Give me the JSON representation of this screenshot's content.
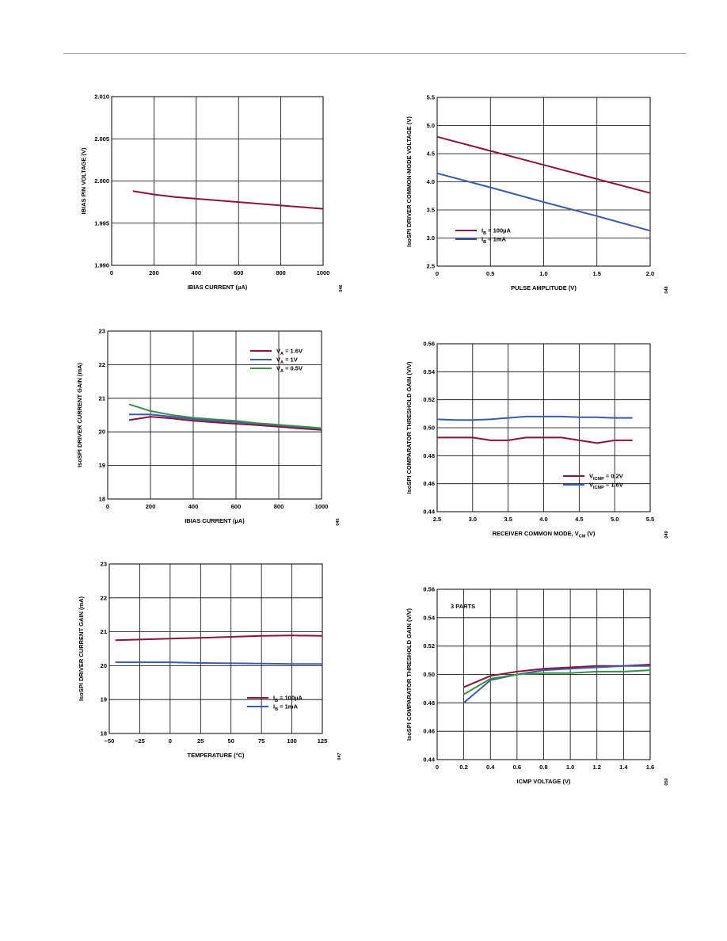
{
  "colors": {
    "maroon": "#8b1538",
    "blue": "#3a5ba9",
    "green": "#3a8f4a",
    "grid": "#000000"
  },
  "chart_data": [
    {
      "type": "line",
      "xlabel": "IBIAS CURRENT (µA)",
      "ylabel": "IBIAS PIN VOLTAGE (V)",
      "xlim": [
        0,
        1000
      ],
      "ylim": [
        1.99,
        2.01
      ],
      "xticks": [
        "0",
        "200",
        "400",
        "600",
        "800",
        "1000"
      ],
      "yticks": [
        "1.990",
        "1.995",
        "2.000",
        "2.005",
        "2.010"
      ],
      "side_code": "046",
      "series": [
        {
          "color": "maroon",
          "x": [
            100,
            200,
            300,
            400,
            500,
            600,
            700,
            800,
            900,
            1000
          ],
          "y": [
            1.9988,
            1.9984,
            1.9981,
            1.9979,
            1.9977,
            1.9975,
            1.9973,
            1.9971,
            1.9969,
            1.9967
          ]
        }
      ]
    },
    {
      "type": "line",
      "xlabel": "PULSE AMPLITUDE (V)",
      "ylabel": "IsoSPI DRIVER COMMON-MODE VOLTAGE (V)",
      "xlim": [
        0,
        2.0
      ],
      "ylim": [
        2.5,
        5.5
      ],
      "xticks": [
        "0",
        "0.5",
        "1.0",
        "1.5",
        "2.0"
      ],
      "yticks": [
        "2.5",
        "3.0",
        "3.5",
        "4.0",
        "4.5",
        "5.0",
        "5.5"
      ],
      "side_code": "048",
      "legend": [
        {
          "label": "I",
          "sub": "B",
          "suffix": " = 100µA",
          "color": "maroon"
        },
        {
          "label": "I",
          "sub": "B",
          "suffix": " = 1mA",
          "color": "blue"
        }
      ],
      "series": [
        {
          "color": "maroon",
          "x": [
            0,
            0.5,
            1.0,
            1.5,
            2.0
          ],
          "y": [
            4.8,
            4.55,
            4.3,
            4.05,
            3.8
          ]
        },
        {
          "color": "blue",
          "x": [
            0,
            0.5,
            1.0,
            1.5,
            2.0
          ],
          "y": [
            4.15,
            3.9,
            3.64,
            3.39,
            3.13
          ]
        }
      ]
    },
    {
      "type": "line",
      "xlabel": "IBIAS CURRENT (µA)",
      "ylabel": "IsoSPI DRIVER CURRENT GAIN (mA)",
      "xlim": [
        0,
        1000
      ],
      "ylim": [
        18,
        23
      ],
      "xticks": [
        "0",
        "200",
        "400",
        "600",
        "800",
        "1000"
      ],
      "yticks": [
        "18",
        "19",
        "20",
        "21",
        "22",
        "23"
      ],
      "side_code": "045",
      "legend": [
        {
          "label": "V",
          "sub": "A",
          "suffix": " = 1.6V",
          "color": "maroon"
        },
        {
          "label": "V",
          "sub": "A",
          "suffix": " = 1V",
          "color": "blue"
        },
        {
          "label": "V",
          "sub": "A",
          "suffix": " = 0.5V",
          "color": "green"
        }
      ],
      "series": [
        {
          "color": "maroon",
          "x": [
            100,
            200,
            300,
            400,
            500,
            600,
            700,
            800,
            900,
            1000
          ],
          "y": [
            20.35,
            20.45,
            20.4,
            20.33,
            20.28,
            20.24,
            20.2,
            20.15,
            20.1,
            20.06
          ]
        },
        {
          "color": "blue",
          "x": [
            100,
            200,
            300,
            400,
            500,
            600,
            700,
            800,
            900,
            1000
          ],
          "y": [
            20.52,
            20.52,
            20.45,
            20.38,
            20.33,
            20.29,
            20.24,
            20.19,
            20.14,
            20.09
          ]
        },
        {
          "color": "green",
          "x": [
            100,
            200,
            300,
            400,
            500,
            600,
            700,
            800,
            900,
            1000
          ],
          "y": [
            20.82,
            20.62,
            20.5,
            20.42,
            20.37,
            20.33,
            20.26,
            20.21,
            20.16,
            20.11
          ]
        }
      ]
    },
    {
      "type": "line",
      "xlabel": "RECEIVER COMMON MODE, V",
      "xlabel_sub": "CM",
      "xlabel_tail": " (V)",
      "ylabel": "IsoSPI COMPARATOR THRESHOLD GAIN (V/V)",
      "xlim": [
        2.5,
        5.5
      ],
      "ylim": [
        0.44,
        0.56
      ],
      "xticks": [
        "2.5",
        "3.0",
        "3.5",
        "4.0",
        "4.5",
        "5.0",
        "5.5"
      ],
      "yticks": [
        "0.44",
        "0.46",
        "0.48",
        "0.50",
        "0.52",
        "0.54",
        "0.56"
      ],
      "side_code": "049",
      "legend": [
        {
          "label": "V",
          "sub": "ICMP",
          "suffix": " = 0.2V",
          "color": "maroon"
        },
        {
          "label": "V",
          "sub": "ICMP",
          "suffix": " = 1.6V",
          "color": "blue"
        }
      ],
      "series": [
        {
          "color": "maroon",
          "x": [
            2.5,
            2.75,
            3.0,
            3.25,
            3.5,
            3.75,
            4.0,
            4.25,
            4.5,
            4.75,
            5.0,
            5.25
          ],
          "y": [
            0.493,
            0.493,
            0.493,
            0.491,
            0.491,
            0.493,
            0.493,
            0.493,
            0.491,
            0.489,
            0.491,
            0.491
          ]
        },
        {
          "color": "blue",
          "x": [
            2.5,
            2.75,
            3.0,
            3.25,
            3.5,
            3.75,
            4.0,
            4.25,
            4.5,
            4.75,
            5.0,
            5.25
          ],
          "y": [
            0.506,
            0.5055,
            0.5055,
            0.506,
            0.507,
            0.508,
            0.508,
            0.508,
            0.5075,
            0.5075,
            0.507,
            0.507
          ]
        }
      ]
    },
    {
      "type": "line",
      "xlabel": "TEMPERATURE (°C)",
      "ylabel": "IsoSPI DRIVER CURRENT GAIN (mA)",
      "xlim": [
        -50,
        125
      ],
      "ylim": [
        18,
        23
      ],
      "xticks": [
        "−50",
        "−25",
        "0",
        "25",
        "50",
        "75",
        "100",
        "125"
      ],
      "yticks": [
        "18",
        "19",
        "20",
        "21",
        "22",
        "23"
      ],
      "side_code": "047",
      "legend": [
        {
          "label": "I",
          "sub": "B",
          "suffix": " = 100µA",
          "color": "maroon"
        },
        {
          "label": "I",
          "sub": "B",
          "suffix": " = 1mA",
          "color": "blue"
        }
      ],
      "series": [
        {
          "color": "maroon",
          "x": [
            -45,
            -25,
            0,
            25,
            50,
            75,
            100,
            125
          ],
          "y": [
            20.75,
            20.77,
            20.8,
            20.82,
            20.85,
            20.88,
            20.89,
            20.88
          ]
        },
        {
          "color": "blue",
          "x": [
            -45,
            -25,
            0,
            25,
            50,
            75,
            100,
            125
          ],
          "y": [
            20.1,
            20.1,
            20.1,
            20.08,
            20.07,
            20.06,
            20.05,
            20.05
          ]
        }
      ]
    },
    {
      "type": "line",
      "xlabel": "ICMP VOLTAGE (V)",
      "ylabel": "IsoSPI COMPARATOR THRESHOLD GAIN (V/V)",
      "xlim": [
        0,
        1.6
      ],
      "ylim": [
        0.44,
        0.56
      ],
      "xticks": [
        "0",
        "0.2",
        "0.4",
        "0.6",
        "0.8",
        "1.0",
        "1.2",
        "1.4",
        "1.6"
      ],
      "yticks": [
        "0.44",
        "0.46",
        "0.48",
        "0.50",
        "0.52",
        "0.54",
        "0.56"
      ],
      "side_code": "050",
      "annotation": "3 PARTS",
      "series": [
        {
          "color": "maroon",
          "x": [
            0.2,
            0.4,
            0.6,
            0.8,
            1.0,
            1.2,
            1.4,
            1.6
          ],
          "y": [
            0.491,
            0.499,
            0.502,
            0.504,
            0.505,
            0.506,
            0.506,
            0.507
          ]
        },
        {
          "color": "blue",
          "x": [
            0.2,
            0.4,
            0.6,
            0.8,
            1.0,
            1.2,
            1.4,
            1.6
          ],
          "y": [
            0.48,
            0.496,
            0.5,
            0.503,
            0.504,
            0.505,
            0.506,
            0.506
          ]
        },
        {
          "color": "green",
          "x": [
            0.2,
            0.4,
            0.6,
            0.8,
            1.0,
            1.2,
            1.4,
            1.6
          ],
          "y": [
            0.486,
            0.497,
            0.5,
            0.501,
            0.501,
            0.502,
            0.502,
            0.503
          ]
        }
      ]
    }
  ]
}
